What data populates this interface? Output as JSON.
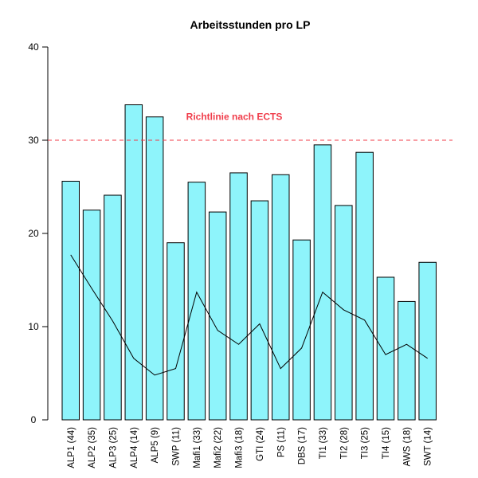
{
  "chart_data": {
    "type": "bar",
    "title": "Arbeitsstunden pro LP",
    "xlabel": "",
    "ylabel": "",
    "ylim": [
      0,
      40
    ],
    "yticks": [
      0,
      10,
      20,
      30,
      40
    ],
    "categories": [
      "ALP1 (44)",
      "ALP2 (35)",
      "ALP3 (25)",
      "ALP4 (14)",
      "ALP5 (9)",
      "SWP (11)",
      "Mafi1 (33)",
      "Mafi2 (22)",
      "Mafi3 (18)",
      "GTI (24)",
      "PS (11)",
      "DBS (17)",
      "TI1 (33)",
      "TI2 (28)",
      "TI3 (25)",
      "TI4 (15)",
      "AWS (18)",
      "SWT (14)"
    ],
    "series": [
      {
        "type": "bar",
        "values": [
          25.6,
          22.5,
          24.1,
          33.8,
          32.5,
          19.0,
          25.5,
          22.3,
          26.5,
          23.5,
          26.3,
          19.3,
          29.5,
          23.0,
          28.7,
          15.3,
          12.7,
          16.9
        ]
      },
      {
        "type": "line",
        "values": [
          17.7,
          14.1,
          10.6,
          6.6,
          4.8,
          5.5,
          13.7,
          9.6,
          8.1,
          10.3,
          5.5,
          7.7,
          13.7,
          11.8,
          10.7,
          7.0,
          8.1,
          6.6
        ]
      }
    ],
    "reference_line": {
      "value": 30,
      "label": "Richtlinie nach ECTS",
      "color": "#f03c4a",
      "style": "dashed"
    },
    "colors": {
      "bar_fill": "#8ef4fb",
      "bar_stroke": "#000000",
      "line": "#000000",
      "axis": "#000000"
    },
    "grid": false,
    "legend": "none"
  }
}
